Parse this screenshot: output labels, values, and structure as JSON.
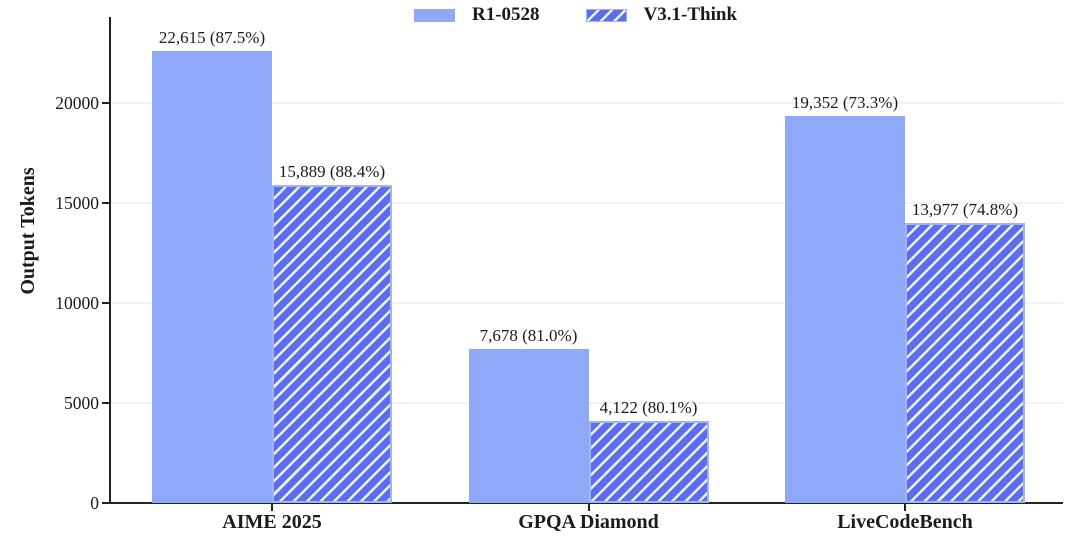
{
  "legend": {
    "items": [
      {
        "label": "R1-0528",
        "swatch": "solid"
      },
      {
        "label": "V3.1-Think",
        "swatch": "hatched"
      }
    ]
  },
  "y_axis": {
    "title": "Output Tokens",
    "tick_labels": [
      "0",
      "5000",
      "10000",
      "15000",
      "20000"
    ]
  },
  "x_axis": {
    "categories": [
      "AIME 2025",
      "GPQA Diamond",
      "LiveCodeBench"
    ]
  },
  "chart_data": {
    "type": "bar",
    "title": "",
    "categories": [
      "AIME 2025",
      "GPQA Diamond",
      "LiveCodeBench"
    ],
    "series": [
      {
        "name": "R1-0528",
        "pattern": "solid",
        "values": [
          22615,
          7678,
          19352
        ],
        "data_labels": [
          "22,615 (87.5%)",
          "7,678 (81.0%)",
          "19,352 (73.3%)"
        ],
        "accuracy_pct": [
          87.5,
          81.0,
          73.3
        ]
      },
      {
        "name": "V3.1-Think",
        "pattern": "hatched-forward-diagonal",
        "values": [
          15889,
          4122,
          13977
        ],
        "data_labels": [
          "15,889 (88.4%)",
          "4,122 (80.1%)",
          "13,977 (74.8%)"
        ],
        "accuracy_pct": [
          88.4,
          80.1,
          74.8
        ]
      }
    ],
    "xlabel": "",
    "ylabel": "Output Tokens",
    "ylim": [
      0,
      23000
    ],
    "yticks": [
      0,
      5000,
      10000,
      15000,
      20000
    ],
    "grid": "horizontal faint lines at yticks",
    "legend_position": "top-center"
  },
  "colors": {
    "solid_bar": "#8ea9f7",
    "hatched_bar_fill": "#5a6eee",
    "hatched_bar_stripe": "#eef1fd",
    "hatched_bar_edge": "#9fb3f7",
    "axis": "#222222",
    "text": "#1b1b1b",
    "gridline": "#f2f2f2",
    "background": "#ffffff"
  }
}
